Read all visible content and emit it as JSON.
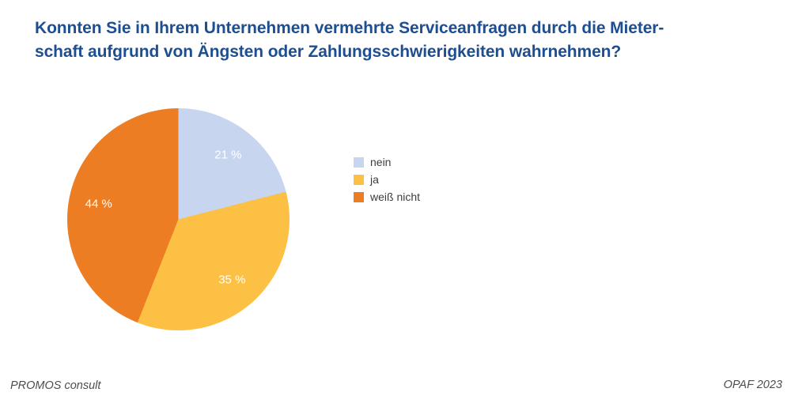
{
  "title_lines": [
    "Konnten Sie in Ihrem Unternehmen vermehrte Serviceanfragen durch die Mieter-",
    "schaft aufgrund von Ängsten oder Zahlungsschwierigkeiten wahrnehmen?"
  ],
  "title_full": "Konnten Sie in Ihrem Unternehmen vermehrte Serviceanfragen durch die Mieterschaft aufgrund von Ängsten oder Zahlungsschwierigkeiten wahrnehmen?",
  "chart_data": {
    "type": "pie",
    "title": "Konnten Sie in Ihrem Unternehmen vermehrte Serviceanfragen durch die Mieterschaft aufgrund von Ängsten oder Zahlungsschwierigkeiten wahrnehmen?",
    "start_angle_deg": 0,
    "direction": "clockwise",
    "legend_position": "right",
    "value_label_color": "#ffffff",
    "slices": [
      {
        "label": "nein",
        "value": 21,
        "display": "21 %",
        "color": "#c7d5ef"
      },
      {
        "label": "ja",
        "value": 35,
        "display": "35 %",
        "color": "#fbc044"
      },
      {
        "label": "weiß nicht",
        "value": 44,
        "display": "44 %",
        "color": "#ed7d23"
      }
    ]
  },
  "footer": {
    "left": "PROMOS consult",
    "right": "OPAF 2023"
  },
  "colors": {
    "title_text": "#1d4e92",
    "legend_text": "#3c3c3b",
    "footer_text": "#4d4d4d",
    "background": "#ffffff"
  }
}
